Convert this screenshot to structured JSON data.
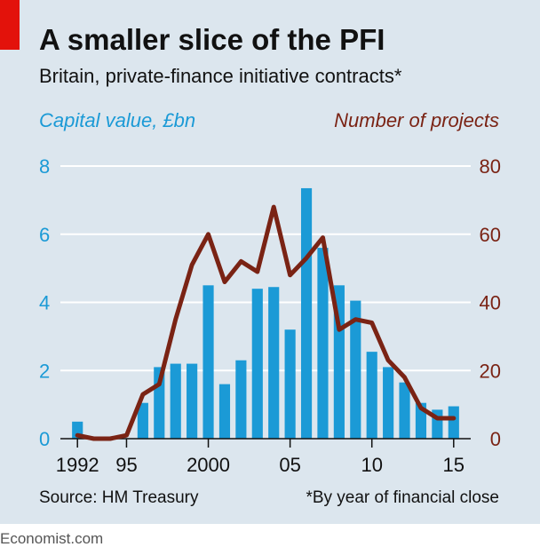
{
  "header": {
    "title": "A smaller slice of the PFI",
    "subtitle": "Britain, private-finance initiative contracts*"
  },
  "footer": {
    "source": "Source: HM Treasury",
    "footnote": "*By year of financial close",
    "brand": "Economist.com"
  },
  "colors": {
    "bars": "#1b9ad6",
    "line": "#7a2314",
    "background": "#dce6ee",
    "accent_tag": "#e3120b"
  },
  "chart_data": {
    "type": "bar",
    "title": "A smaller slice of the PFI",
    "subtitle": "Britain, private-finance initiative contracts*",
    "x": [
      1992,
      1993,
      1994,
      1995,
      1996,
      1997,
      1998,
      1999,
      2000,
      2001,
      2002,
      2003,
      2004,
      2005,
      2006,
      2007,
      2008,
      2009,
      2010,
      2011,
      2012,
      2013,
      2014,
      2015
    ],
    "x_tick_labels": [
      {
        "x": 1992,
        "label": "1992"
      },
      {
        "x": 1995,
        "label": "95"
      },
      {
        "x": 2000,
        "label": "2000"
      },
      {
        "x": 2005,
        "label": "05"
      },
      {
        "x": 2010,
        "label": "10"
      },
      {
        "x": 2015,
        "label": "15"
      }
    ],
    "series": [
      {
        "name": "Capital value, £bn",
        "type": "bar",
        "axis": "left",
        "values": [
          0.5,
          0,
          0,
          0,
          1.05,
          2.1,
          2.2,
          2.2,
          4.5,
          1.6,
          2.3,
          4.4,
          4.45,
          3.2,
          7.35,
          5.6,
          4.5,
          4.05,
          2.55,
          2.1,
          1.65,
          1.05,
          0.85,
          0.95
        ]
      },
      {
        "name": "Number of projects",
        "type": "line",
        "axis": "right",
        "values": [
          1,
          0,
          0,
          1,
          13,
          16,
          35,
          51,
          60,
          46,
          52,
          49,
          68,
          48,
          53,
          59,
          32,
          35,
          34,
          23,
          18,
          9,
          6,
          6
        ]
      }
    ],
    "ylabel_left": "Capital value, £bn",
    "ylabel_right": "Number of projects",
    "ylim_left": [
      0,
      8
    ],
    "ylim_right": [
      0,
      80
    ],
    "yticks_left": [
      0,
      2,
      4,
      6,
      8
    ],
    "yticks_right": [
      0,
      20,
      40,
      60,
      80
    ],
    "grid": true
  }
}
